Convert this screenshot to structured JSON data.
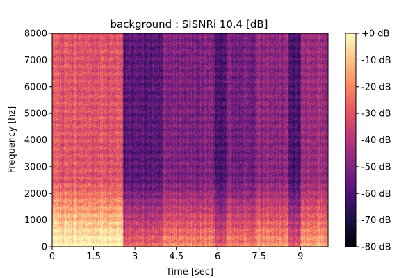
{
  "chart_data": {
    "type": "heatmap",
    "title": "background : SISNRi 10.4 [dB]",
    "xlabel": "Time [sec]",
    "ylabel": "Frequency [hz]",
    "xlim": [
      0,
      10
    ],
    "ylim": [
      0,
      8000
    ],
    "x_ticks": [
      {
        "value": 0,
        "label": "0"
      },
      {
        "value": 1.5,
        "label": "1.5"
      },
      {
        "value": 3,
        "label": "3"
      },
      {
        "value": 4.5,
        "label": "4.5"
      },
      {
        "value": 6,
        "label": "6"
      },
      {
        "value": 7.5,
        "label": "7.5"
      },
      {
        "value": 9,
        "label": "9"
      }
    ],
    "y_ticks": [
      {
        "value": 0,
        "label": "0"
      },
      {
        "value": 1000,
        "label": "1000"
      },
      {
        "value": 2000,
        "label": "2000"
      },
      {
        "value": 3000,
        "label": "3000"
      },
      {
        "value": 4000,
        "label": "4000"
      },
      {
        "value": 5000,
        "label": "5000"
      },
      {
        "value": 6000,
        "label": "6000"
      },
      {
        "value": 7000,
        "label": "7000"
      },
      {
        "value": 8000,
        "label": "8000"
      }
    ],
    "colorbar": {
      "range": [
        -80,
        0
      ],
      "ticks": [
        {
          "value": 0,
          "label": "+0 dB"
        },
        {
          "value": -10,
          "label": "-10 dB"
        },
        {
          "value": -20,
          "label": "-20 dB"
        },
        {
          "value": -30,
          "label": "-30 dB"
        },
        {
          "value": -40,
          "label": "-40 dB"
        },
        {
          "value": -50,
          "label": "-50 dB"
        },
        {
          "value": -60,
          "label": "-60 dB"
        },
        {
          "value": -70,
          "label": "-70 dB"
        },
        {
          "value": -80,
          "label": "-80 dB"
        }
      ],
      "colormap": "magma"
    },
    "time_segments": [
      {
        "start": 0,
        "end": 2.55,
        "level_db": -30
      },
      {
        "start": 2.55,
        "end": 4.0,
        "level_db": -58
      },
      {
        "start": 4.0,
        "end": 5.9,
        "level_db": -50
      },
      {
        "start": 5.9,
        "end": 6.3,
        "level_db": -62
      },
      {
        "start": 6.3,
        "end": 7.4,
        "level_db": -52
      },
      {
        "start": 7.4,
        "end": 8.55,
        "level_db": -48
      },
      {
        "start": 8.55,
        "end": 9.0,
        "level_db": -62
      },
      {
        "start": 9.0,
        "end": 10.0,
        "level_db": -45
      }
    ]
  }
}
